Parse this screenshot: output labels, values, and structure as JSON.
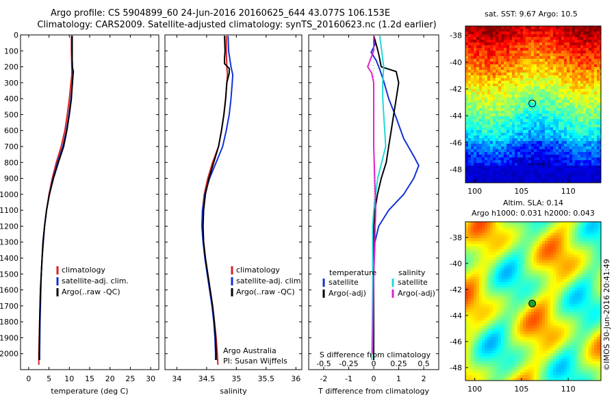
{
  "header": {
    "title_line1": "Argo profile: CS 5904899_60 24-Jun-2016 20160625_644 43.077S 106.153E",
    "title_line2": "Climatology: CARS2009. Satellite-adjusted climatology: synTS_20160623.nc (1.2d earlier)"
  },
  "credits": {
    "group": "Argo Australia",
    "pi": "PI: Susan Wijffels",
    "watermark": "©IMOS 30-Jun-2016 20:41:49"
  },
  "colors": {
    "climatology": "#d82020",
    "satellite": "#1030d8",
    "argo": "#000000",
    "argo_salinity_diff": "#e020d0",
    "satellite_salinity_diff": "#20d8d8"
  },
  "chart_data": [
    {
      "type": "line",
      "id": "temperature",
      "xlabel": "temperature (deg C)",
      "ylabel": "",
      "xlim": [
        -2,
        32
      ],
      "ylim": [
        2100,
        0
      ],
      "xticks": [
        0,
        5,
        10,
        15,
        20,
        25,
        30
      ],
      "yticks": [
        0,
        100,
        200,
        300,
        400,
        500,
        600,
        700,
        800,
        900,
        1000,
        1100,
        1200,
        1300,
        1400,
        1500,
        1600,
        1700,
        1800,
        1900,
        2000
      ],
      "legend": {
        "placement": "lower-left",
        "entries": [
          "climatology",
          "satellite-adj. clim.",
          "Argo(..raw -QC)"
        ]
      },
      "series": [
        {
          "name": "climatology",
          "color": "#d82020",
          "points": [
            [
              10.5,
              5
            ],
            [
              10.5,
              100
            ],
            [
              10.6,
              200
            ],
            [
              10.6,
              250
            ],
            [
              10.4,
              300
            ],
            [
              10.0,
              400
            ],
            [
              9.5,
              500
            ],
            [
              8.9,
              600
            ],
            [
              8.0,
              700
            ],
            [
              6.8,
              800
            ],
            [
              5.8,
              900
            ],
            [
              5.0,
              1000
            ],
            [
              4.4,
              1100
            ],
            [
              3.9,
              1200
            ],
            [
              3.6,
              1300
            ],
            [
              3.3,
              1400
            ],
            [
              3.1,
              1500
            ],
            [
              2.9,
              1600
            ],
            [
              2.8,
              1700
            ],
            [
              2.7,
              1800
            ],
            [
              2.6,
              1900
            ],
            [
              2.5,
              2000
            ],
            [
              2.5,
              2070
            ]
          ]
        },
        {
          "name": "satellite-adj. clim.",
          "color": "#1030d8",
          "points": [
            [
              10.6,
              5
            ],
            [
              10.6,
              100
            ],
            [
              10.8,
              200
            ],
            [
              10.9,
              250
            ],
            [
              10.8,
              300
            ],
            [
              10.4,
              400
            ],
            [
              9.9,
              500
            ],
            [
              9.3,
              600
            ],
            [
              8.4,
              700
            ],
            [
              7.1,
              800
            ],
            [
              6.0,
              900
            ],
            [
              5.1,
              1000
            ],
            [
              4.4,
              1100
            ],
            [
              3.9,
              1200
            ],
            [
              3.6,
              1300
            ],
            [
              3.3,
              1400
            ],
            [
              3.1,
              1500
            ],
            [
              3.0,
              1600
            ],
            [
              2.9,
              1700
            ],
            [
              2.8,
              1800
            ],
            [
              2.75,
              1900
            ],
            [
              2.7,
              2000
            ],
            [
              2.7,
              2040
            ]
          ]
        },
        {
          "name": "Argo(..raw -QC)",
          "color": "#000000",
          "points": [
            [
              10.7,
              5
            ],
            [
              10.7,
              100
            ],
            [
              10.7,
              200
            ],
            [
              11.0,
              230
            ],
            [
              10.8,
              280
            ],
            [
              10.5,
              400
            ],
            [
              10.0,
              500
            ],
            [
              9.4,
              600
            ],
            [
              8.6,
              700
            ],
            [
              7.3,
              800
            ],
            [
              6.1,
              900
            ],
            [
              5.1,
              1000
            ],
            [
              4.4,
              1100
            ],
            [
              3.9,
              1200
            ],
            [
              3.5,
              1300
            ],
            [
              3.3,
              1400
            ],
            [
              3.1,
              1500
            ],
            [
              2.9,
              1600
            ],
            [
              2.8,
              1700
            ],
            [
              2.7,
              1800
            ],
            [
              2.65,
              1900
            ],
            [
              2.6,
              2000
            ],
            [
              2.6,
              2040
            ]
          ]
        }
      ]
    },
    {
      "type": "line",
      "id": "salinity",
      "xlabel": "salinity",
      "ylabel": "",
      "xlim": [
        33.8,
        36.1
      ],
      "ylim": [
        2100,
        0
      ],
      "xticks": [
        34,
        34.5,
        35,
        35.5,
        36
      ],
      "xticklabels": [
        "34",
        "34.5",
        "35",
        "35.5",
        "36"
      ],
      "legend": {
        "placement": "lower-right",
        "entries": [
          "climatology",
          "satellite-adj. clim.",
          "Argo(..raw -QC)"
        ]
      },
      "series": [
        {
          "name": "climatology",
          "color": "#d82020",
          "points": [
            [
              34.83,
              5
            ],
            [
              34.83,
              100
            ],
            [
              34.84,
              200
            ],
            [
              34.85,
              250
            ],
            [
              34.84,
              300
            ],
            [
              34.82,
              400
            ],
            [
              34.79,
              500
            ],
            [
              34.75,
              600
            ],
            [
              34.7,
              700
            ],
            [
              34.6,
              800
            ],
            [
              34.52,
              900
            ],
            [
              34.46,
              1000
            ],
            [
              34.43,
              1100
            ],
            [
              34.43,
              1200
            ],
            [
              34.45,
              1300
            ],
            [
              34.48,
              1400
            ],
            [
              34.52,
              1500
            ],
            [
              34.56,
              1600
            ],
            [
              34.6,
              1700
            ],
            [
              34.63,
              1800
            ],
            [
              34.66,
              1900
            ],
            [
              34.68,
              2000
            ],
            [
              34.69,
              2070
            ]
          ]
        },
        {
          "name": "satellite-adj. clim.",
          "color": "#1030d8",
          "points": [
            [
              34.86,
              5
            ],
            [
              34.87,
              100
            ],
            [
              34.91,
              200
            ],
            [
              34.94,
              250
            ],
            [
              34.93,
              300
            ],
            [
              34.91,
              400
            ],
            [
              34.88,
              500
            ],
            [
              34.83,
              600
            ],
            [
              34.77,
              700
            ],
            [
              34.66,
              800
            ],
            [
              34.55,
              900
            ],
            [
              34.47,
              1000
            ],
            [
              34.43,
              1100
            ],
            [
              34.42,
              1200
            ],
            [
              34.44,
              1300
            ],
            [
              34.47,
              1400
            ],
            [
              34.51,
              1500
            ],
            [
              34.55,
              1600
            ],
            [
              34.59,
              1700
            ],
            [
              34.62,
              1800
            ],
            [
              34.64,
              1900
            ],
            [
              34.65,
              2000
            ],
            [
              34.65,
              2040
            ]
          ]
        },
        {
          "name": "Argo(..raw -QC)",
          "color": "#000000",
          "points": [
            [
              34.8,
              5
            ],
            [
              34.81,
              100
            ],
            [
              34.8,
              150
            ],
            [
              34.8,
              180
            ],
            [
              34.88,
              210
            ],
            [
              34.88,
              240
            ],
            [
              34.84,
              300
            ],
            [
              34.82,
              400
            ],
            [
              34.79,
              500
            ],
            [
              34.75,
              600
            ],
            [
              34.7,
              700
            ],
            [
              34.62,
              800
            ],
            [
              34.54,
              900
            ],
            [
              34.48,
              1000
            ],
            [
              34.45,
              1100
            ],
            [
              34.44,
              1200
            ],
            [
              34.45,
              1300
            ],
            [
              34.48,
              1400
            ],
            [
              34.52,
              1500
            ],
            [
              34.56,
              1600
            ],
            [
              34.6,
              1700
            ],
            [
              34.63,
              1800
            ],
            [
              34.65,
              1900
            ],
            [
              34.66,
              2000
            ],
            [
              34.66,
              2040
            ]
          ]
        }
      ]
    },
    {
      "type": "line",
      "id": "difference",
      "xlabel": "T difference from climatology",
      "xlabel_top": "S difference from climatology",
      "xlim": [
        -2.6,
        2.6
      ],
      "ylim": [
        2100,
        0
      ],
      "xticks": [
        -2,
        -1,
        0,
        1,
        2
      ],
      "top_ticks": [
        -0.5,
        -0.25,
        0,
        0.25,
        0.5
      ],
      "top_ticklabels": [
        "-0.5",
        "-0.25",
        "0",
        "0.25",
        "0.5"
      ],
      "legend": {
        "placement": "lower-center",
        "temperature_title": "temperature",
        "salinity_title": "salinity",
        "temperature_entries": [
          "satellite",
          "Argo(-adj)"
        ],
        "salinity_entries": [
          "satellite",
          "Argo(-adj)"
        ]
      },
      "series": [
        {
          "name": "temperature satellite",
          "color": "#1030d8",
          "points": [
            [
              0.0,
              5
            ],
            [
              0.05,
              60
            ],
            [
              -0.1,
              110
            ],
            [
              0.1,
              160
            ],
            [
              0.25,
              220
            ],
            [
              0.4,
              290
            ],
            [
              0.6,
              400
            ],
            [
              0.9,
              520
            ],
            [
              1.2,
              650
            ],
            [
              1.6,
              760
            ],
            [
              1.8,
              820
            ],
            [
              1.6,
              900
            ],
            [
              1.2,
              1000
            ],
            [
              0.6,
              1100
            ],
            [
              0.2,
              1200
            ],
            [
              0.05,
              1300
            ],
            [
              0.0,
              1500
            ],
            [
              0.0,
              2040
            ]
          ]
        },
        {
          "name": "temperature Argo(-adj)",
          "color": "#000000",
          "points": [
            [
              0.0,
              5
            ],
            [
              0.1,
              60
            ],
            [
              0.2,
              120
            ],
            [
              0.3,
              200
            ],
            [
              0.9,
              230
            ],
            [
              1.0,
              300
            ],
            [
              0.9,
              400
            ],
            [
              0.8,
              500
            ],
            [
              0.7,
              600
            ],
            [
              0.6,
              700
            ],
            [
              0.5,
              800
            ],
            [
              0.3,
              900
            ],
            [
              0.15,
              1000
            ],
            [
              0.05,
              1100
            ],
            [
              0.0,
              1200
            ],
            [
              0.0,
              2040
            ]
          ]
        },
        {
          "name": "salinity satellite",
          "color": "#20d8d8",
          "points": [
            [
              0.06,
              5
            ],
            [
              0.08,
              100
            ],
            [
              0.1,
              200
            ],
            [
              0.09,
              300
            ],
            [
              0.09,
              400
            ],
            [
              0.1,
              500
            ],
            [
              0.11,
              600
            ],
            [
              0.12,
              700
            ],
            [
              0.08,
              800
            ],
            [
              0.04,
              900
            ],
            [
              0.02,
              1000
            ],
            [
              0.0,
              1100
            ],
            [
              -0.01,
              1200
            ],
            [
              -0.01,
              1400
            ],
            [
              -0.01,
              1600
            ],
            [
              -0.02,
              2040
            ]
          ]
        },
        {
          "name": "salinity Argo(-adj)",
          "color": "#e020d0",
          "points": [
            [
              0.0,
              5
            ],
            [
              0.0,
              100
            ],
            [
              -0.03,
              150
            ],
            [
              -0.06,
              200
            ],
            [
              -0.02,
              240
            ],
            [
              0.0,
              300
            ],
            [
              0.0,
              500
            ],
            [
              0.0,
              700
            ],
            [
              0.01,
              900
            ],
            [
              0.02,
              1100
            ],
            [
              0.01,
              1300
            ],
            [
              0.0,
              1500
            ],
            [
              -0.01,
              2000
            ]
          ]
        }
      ]
    },
    {
      "type": "heatmap",
      "id": "sst_map",
      "title": "sat. SST: 9.67  Argo: 10.5",
      "xlim": [
        99,
        113.5
      ],
      "ylim": [
        -49,
        -37.3
      ],
      "xticks": [
        100,
        105,
        110
      ],
      "yticks": [
        -38,
        -40,
        -42,
        -44,
        -46,
        -48
      ],
      "marker": {
        "lon": 106.153,
        "lat": -43.077
      }
    },
    {
      "type": "heatmap",
      "id": "sla_map",
      "title": "Altim. SLA: 0.14",
      "subtitle": "Argo h1000: 0.031 h2000: 0.043",
      "xlim": [
        99,
        113.5
      ],
      "ylim": [
        -49,
        -36.8
      ],
      "xticks": [
        100,
        105,
        110
      ],
      "yticks": [
        -38,
        -40,
        -42,
        -44,
        -46,
        -48
      ],
      "marker": {
        "lon": 106.153,
        "lat": -43.077
      }
    }
  ]
}
